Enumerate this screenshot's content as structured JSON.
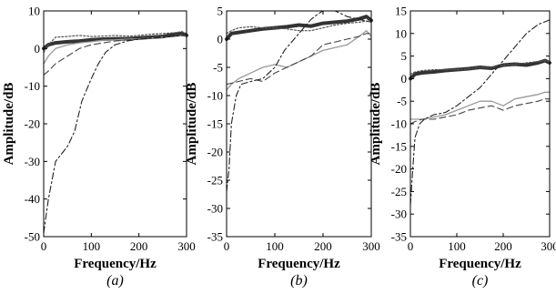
{
  "chart_data": [
    {
      "type": "line",
      "panel_label": "(a)",
      "xlabel": "Frequency/Hz",
      "ylabel": "Amplitude/dB",
      "xlim": [
        0,
        300
      ],
      "ylim": [
        -50,
        10
      ],
      "xticks": [
        0,
        100,
        200,
        300
      ],
      "yticks": [
        -50,
        -40,
        -30,
        -20,
        -10,
        0,
        10
      ],
      "grid": false,
      "series": [
        {
          "style": "thick",
          "points": [
            [
              0,
              0
            ],
            [
              10,
              1
            ],
            [
              25,
              1.5
            ],
            [
              50,
              1.8
            ],
            [
              75,
              2
            ],
            [
              100,
              2.3
            ],
            [
              125,
              2.5
            ],
            [
              150,
              2.6
            ],
            [
              175,
              2.6
            ],
            [
              200,
              2.8
            ],
            [
              225,
              3
            ],
            [
              250,
              3.2
            ],
            [
              275,
              3.8
            ],
            [
              290,
              4
            ],
            [
              300,
              3.5
            ]
          ]
        },
        {
          "style": "dotted",
          "points": [
            [
              0,
              -1
            ],
            [
              10,
              1
            ],
            [
              25,
              3
            ],
            [
              50,
              3.2
            ],
            [
              75,
              3.5
            ],
            [
              100,
              3.2
            ],
            [
              125,
              3.3
            ],
            [
              150,
              3.5
            ],
            [
              175,
              3.3
            ],
            [
              200,
              3.5
            ],
            [
              225,
              3.8
            ],
            [
              250,
              4
            ],
            [
              275,
              4.2
            ],
            [
              290,
              4.5
            ],
            [
              300,
              4
            ]
          ]
        },
        {
          "style": "solid-gray",
          "points": [
            [
              0,
              -4
            ],
            [
              10,
              -2
            ],
            [
              25,
              0
            ],
            [
              50,
              1
            ],
            [
              75,
              1.5
            ],
            [
              100,
              1.8
            ],
            [
              125,
              2.2
            ],
            [
              150,
              2.3
            ],
            [
              175,
              2.5
            ],
            [
              200,
              2.6
            ],
            [
              225,
              2.8
            ],
            [
              250,
              3
            ],
            [
              275,
              3.2
            ],
            [
              290,
              3.5
            ],
            [
              300,
              3.2
            ]
          ]
        },
        {
          "style": "dashed",
          "points": [
            [
              0,
              -7
            ],
            [
              10,
              -6
            ],
            [
              25,
              -4
            ],
            [
              50,
              -2
            ],
            [
              75,
              0
            ],
            [
              100,
              1
            ],
            [
              125,
              1.5
            ],
            [
              150,
              2
            ],
            [
              175,
              2.3
            ],
            [
              200,
              2.5
            ],
            [
              225,
              2.8
            ],
            [
              250,
              3
            ],
            [
              275,
              3.3
            ],
            [
              290,
              3.6
            ],
            [
              300,
              3.5
            ]
          ]
        },
        {
          "style": "dashdot",
          "points": [
            [
              0,
              -49
            ],
            [
              10,
              -40
            ],
            [
              25,
              -30
            ],
            [
              50,
              -26
            ],
            [
              65,
              -22
            ],
            [
              80,
              -14
            ],
            [
              100,
              -8
            ],
            [
              115,
              -4
            ],
            [
              130,
              -1
            ],
            [
              150,
              1
            ],
            [
              175,
              2
            ],
            [
              200,
              2.5
            ],
            [
              225,
              2.8
            ],
            [
              250,
              3
            ],
            [
              275,
              3.3
            ],
            [
              300,
              3.5
            ]
          ]
        }
      ]
    },
    {
      "type": "line",
      "panel_label": "(b)",
      "xlabel": "Frequency/Hz",
      "ylabel": "Amplitude/dB",
      "xlim": [
        0,
        300
      ],
      "ylim": [
        -35,
        5
      ],
      "xticks": [
        0,
        100,
        200,
        300
      ],
      "yticks": [
        -35,
        -30,
        -25,
        -20,
        -15,
        -10,
        -5,
        0,
        5
      ],
      "grid": false,
      "series": [
        {
          "style": "thick",
          "points": [
            [
              0,
              0
            ],
            [
              10,
              1
            ],
            [
              25,
              1.2
            ],
            [
              50,
              1.5
            ],
            [
              75,
              1.8
            ],
            [
              100,
              2
            ],
            [
              125,
              2.2
            ],
            [
              150,
              2.5
            ],
            [
              175,
              2.3
            ],
            [
              200,
              2.8
            ],
            [
              225,
              3
            ],
            [
              250,
              3.2
            ],
            [
              275,
              3.6
            ],
            [
              290,
              4
            ],
            [
              300,
              3.3
            ]
          ]
        },
        {
          "style": "dotted",
          "points": [
            [
              0,
              1
            ],
            [
              10,
              1.5
            ],
            [
              25,
              2
            ],
            [
              50,
              2.2
            ],
            [
              75,
              2
            ],
            [
              100,
              2
            ],
            [
              125,
              1.8
            ],
            [
              150,
              1.5
            ],
            [
              175,
              1.5
            ],
            [
              200,
              2
            ],
            [
              225,
              2.5
            ],
            [
              250,
              2.8
            ],
            [
              275,
              3
            ],
            [
              290,
              3.2
            ],
            [
              300,
              3
            ]
          ]
        },
        {
          "style": "solid-gray",
          "points": [
            [
              0,
              -9
            ],
            [
              10,
              -8
            ],
            [
              25,
              -7
            ],
            [
              50,
              -6
            ],
            [
              75,
              -5
            ],
            [
              100,
              -4.5
            ],
            [
              125,
              -5
            ],
            [
              150,
              -4
            ],
            [
              175,
              -3
            ],
            [
              200,
              -2
            ],
            [
              225,
              -1.5
            ],
            [
              250,
              -1
            ],
            [
              275,
              0.5
            ],
            [
              290,
              1.5
            ],
            [
              300,
              0.5
            ]
          ]
        },
        {
          "style": "dashed",
          "points": [
            [
              0,
              -8
            ],
            [
              10,
              -7.8
            ],
            [
              25,
              -7.5
            ],
            [
              50,
              -7
            ],
            [
              75,
              -7.5
            ],
            [
              100,
              -6
            ],
            [
              125,
              -5
            ],
            [
              150,
              -4
            ],
            [
              175,
              -3
            ],
            [
              200,
              -1
            ],
            [
              225,
              -0.5
            ],
            [
              250,
              0
            ],
            [
              275,
              0.5
            ],
            [
              290,
              1
            ],
            [
              300,
              1
            ]
          ]
        },
        {
          "style": "dashdot",
          "points": [
            [
              0,
              -27
            ],
            [
              5,
              -23
            ],
            [
              10,
              -15
            ],
            [
              20,
              -10
            ],
            [
              30,
              -8
            ],
            [
              50,
              -7.5
            ],
            [
              75,
              -7
            ],
            [
              100,
              -5
            ],
            [
              120,
              -2
            ],
            [
              140,
              0
            ],
            [
              160,
              2
            ],
            [
              175,
              3.5
            ],
            [
              190,
              4.5
            ],
            [
              200,
              5
            ],
            [
              225,
              5
            ],
            [
              250,
              4
            ],
            [
              275,
              3.5
            ],
            [
              300,
              3
            ]
          ]
        }
      ]
    },
    {
      "type": "line",
      "panel_label": "(c)",
      "xlabel": "Frequency/Hz",
      "ylabel": "Amplitude/dB",
      "xlim": [
        0,
        300
      ],
      "ylim": [
        -35,
        15
      ],
      "xticks": [
        0,
        100,
        200,
        300
      ],
      "yticks": [
        -35,
        -30,
        -25,
        -20,
        -15,
        -10,
        -5,
        0,
        5,
        10,
        15
      ],
      "grid": false,
      "series": [
        {
          "style": "thick",
          "points": [
            [
              0,
              0
            ],
            [
              10,
              1
            ],
            [
              25,
              1.3
            ],
            [
              50,
              1.5
            ],
            [
              75,
              1.8
            ],
            [
              100,
              2
            ],
            [
              125,
              2.2
            ],
            [
              150,
              2.5
            ],
            [
              175,
              2.3
            ],
            [
              200,
              3
            ],
            [
              225,
              3.2
            ],
            [
              250,
              3
            ],
            [
              275,
              3.5
            ],
            [
              290,
              4
            ],
            [
              300,
              3.5
            ]
          ]
        },
        {
          "style": "dotted",
          "points": [
            [
              0,
              1
            ],
            [
              10,
              1.5
            ],
            [
              25,
              1.8
            ],
            [
              50,
              2
            ],
            [
              75,
              2
            ],
            [
              100,
              2
            ],
            [
              125,
              2.2
            ],
            [
              150,
              2.5
            ],
            [
              175,
              2.5
            ],
            [
              200,
              3
            ],
            [
              225,
              3.2
            ],
            [
              250,
              3.5
            ],
            [
              275,
              3.8
            ],
            [
              290,
              4
            ],
            [
              300,
              3.8
            ]
          ]
        },
        {
          "style": "solid-gray",
          "points": [
            [
              0,
              -9
            ],
            [
              10,
              -9
            ],
            [
              25,
              -9
            ],
            [
              50,
              -8.5
            ],
            [
              75,
              -8
            ],
            [
              100,
              -7
            ],
            [
              125,
              -6
            ],
            [
              150,
              -5
            ],
            [
              175,
              -5
            ],
            [
              200,
              -6
            ],
            [
              225,
              -4.5
            ],
            [
              250,
              -4
            ],
            [
              275,
              -3.5
            ],
            [
              290,
              -3
            ],
            [
              300,
              -3
            ]
          ]
        },
        {
          "style": "dashed",
          "points": [
            [
              0,
              -10
            ],
            [
              10,
              -9.5
            ],
            [
              25,
              -9
            ],
            [
              50,
              -9
            ],
            [
              75,
              -8.5
            ],
            [
              100,
              -8
            ],
            [
              125,
              -7
            ],
            [
              150,
              -6.5
            ],
            [
              175,
              -6
            ],
            [
              200,
              -7
            ],
            [
              225,
              -6
            ],
            [
              250,
              -5.5
            ],
            [
              275,
              -5
            ],
            [
              290,
              -4.5
            ],
            [
              300,
              -4.5
            ]
          ]
        },
        {
          "style": "dashdot",
          "points": [
            [
              0,
              -28
            ],
            [
              5,
              -20
            ],
            [
              10,
              -13
            ],
            [
              20,
              -10
            ],
            [
              30,
              -9
            ],
            [
              50,
              -8
            ],
            [
              75,
              -7.5
            ],
            [
              100,
              -6
            ],
            [
              125,
              -4
            ],
            [
              150,
              -2
            ],
            [
              175,
              1
            ],
            [
              200,
              4
            ],
            [
              225,
              7
            ],
            [
              250,
              10
            ],
            [
              275,
              12
            ],
            [
              300,
              13
            ]
          ]
        }
      ]
    }
  ]
}
